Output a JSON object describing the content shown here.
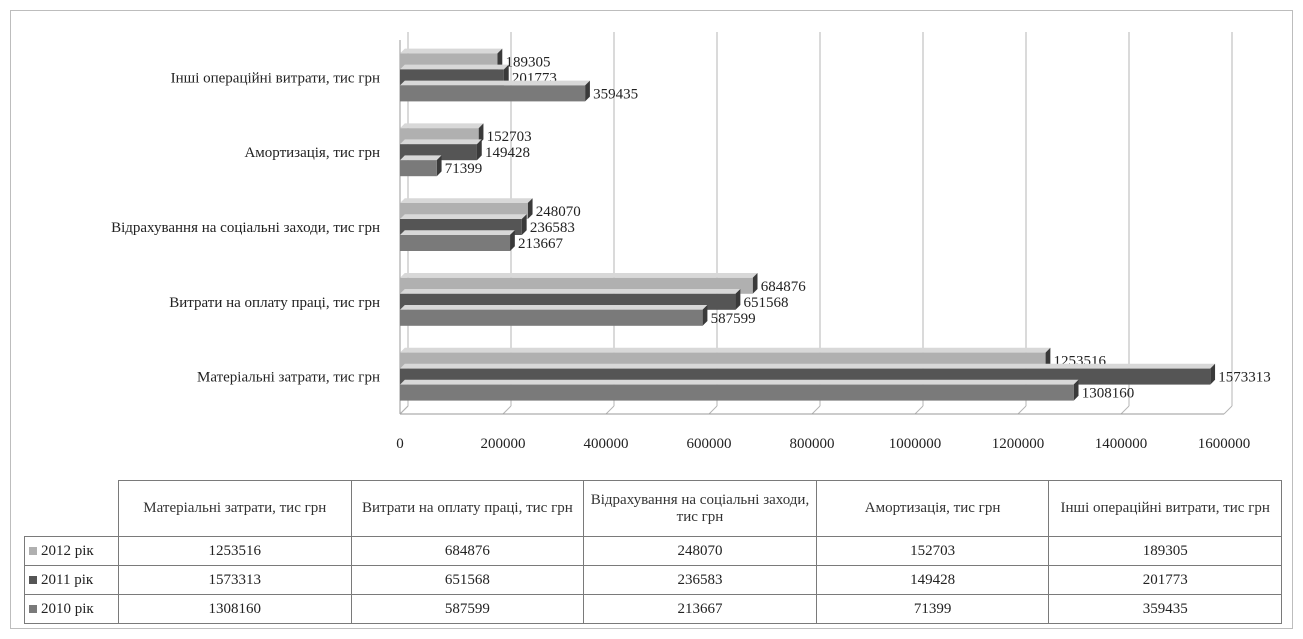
{
  "chart_data": {
    "type": "bar",
    "orientation": "horizontal",
    "categories": [
      "Матеріальні затрати, тис грн",
      "Витрати на оплату праці, тис грн",
      "Відрахування на соціальні заходи, тис грн",
      "Амортизація, тис грн",
      "Інші операційні витрати, тис грн"
    ],
    "category_labels_axis": [
      "Матеріальні затрати, тис грн",
      "Витрати на оплату праці, тис грн",
      "Відрахування на соціальні заходи, тис грн",
      "Амортизація, тис грн",
      "Інші операційні витрати, тис грн"
    ],
    "series": [
      {
        "name": "2012 рік",
        "values": [
          1253516,
          684876,
          248070,
          152703,
          189305
        ],
        "color": "#b0b0b0"
      },
      {
        "name": "2011 рік",
        "values": [
          1573313,
          651568,
          236583,
          149428,
          201773
        ],
        "color": "#555555"
      },
      {
        "name": "2010 рік",
        "values": [
          1308160,
          587599,
          213667,
          71399,
          359435
        ],
        "color": "#7a7a7a"
      }
    ],
    "xlim": [
      0,
      1600000
    ],
    "xticks": [
      0,
      200000,
      400000,
      600000,
      800000,
      1000000,
      1200000,
      1400000,
      1600000
    ],
    "tick_labels": [
      "0",
      "200000",
      "400000",
      "600000",
      "800000",
      "1000000",
      "1200000",
      "1400000",
      "1600000"
    ],
    "grid": true,
    "legend": "data table",
    "title": "",
    "xlabel": "",
    "ylabel": ""
  },
  "table": {
    "headers": [
      "Матеріальні затрати, тис грн",
      "Витрати на оплату праці, тис грн",
      "Відрахування на соціальні заходи, тис грн",
      "Амортизація, тис грн",
      "Інші операційні витрати, тис грн"
    ],
    "rows": [
      {
        "label": "2012 рік",
        "color": "#b0b0b0",
        "cells": [
          "1253516",
          "684876",
          "248070",
          "152703",
          "189305"
        ]
      },
      {
        "label": "2011 рік",
        "color": "#555555",
        "cells": [
          "1573313",
          "651568",
          "236583",
          "149428",
          "201773"
        ]
      },
      {
        "label": "2010 рік",
        "color": "#7a7a7a",
        "cells": [
          "1308160",
          "587599",
          "213667",
          "71399",
          "359435"
        ]
      }
    ]
  }
}
